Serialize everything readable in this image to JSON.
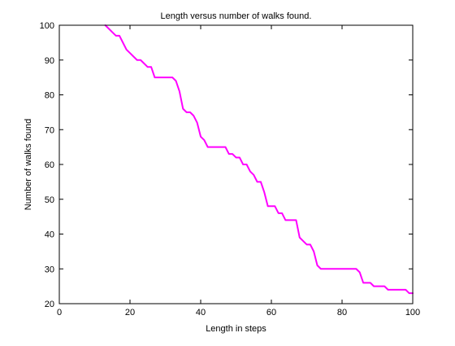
{
  "chart_data": {
    "type": "line",
    "title": "Length versus number of walks found.",
    "xlabel": "Length in steps",
    "ylabel": "Number of walks found",
    "xlim": [
      0,
      100
    ],
    "ylim": [
      20,
      100
    ],
    "xticks": [
      0,
      20,
      40,
      60,
      80,
      100
    ],
    "yticks": [
      20,
      30,
      40,
      50,
      60,
      70,
      80,
      90,
      100
    ],
    "grid": false,
    "legend": "none",
    "series": [
      {
        "color": "#ff00ff",
        "x": [
          13,
          14,
          15,
          16,
          17,
          18,
          19,
          20,
          21,
          22,
          23,
          24,
          25,
          26,
          27,
          28,
          29,
          30,
          31,
          32,
          33,
          34,
          35,
          36,
          37,
          38,
          39,
          40,
          41,
          42,
          43,
          44,
          45,
          46,
          47,
          48,
          49,
          50,
          51,
          52,
          53,
          54,
          55,
          56,
          57,
          58,
          59,
          60,
          61,
          62,
          63,
          64,
          65,
          66,
          67,
          68,
          69,
          70,
          71,
          72,
          73,
          74,
          75,
          76,
          77,
          78,
          79,
          80,
          81,
          82,
          83,
          84,
          85,
          86,
          87,
          88,
          89,
          90,
          91,
          92,
          93,
          94,
          95,
          96,
          97,
          98,
          99,
          100
        ],
        "y": [
          100,
          99,
          98,
          97,
          97,
          95,
          93,
          92,
          91,
          90,
          90,
          89,
          88,
          88,
          85,
          85,
          85,
          85,
          85,
          85,
          84,
          81,
          76,
          75,
          75,
          74,
          72,
          68,
          67,
          65,
          65,
          65,
          65,
          65,
          65,
          63,
          63,
          62,
          62,
          60,
          60,
          58,
          57,
          55,
          55,
          52,
          48,
          48,
          48,
          46,
          46,
          44,
          44,
          44,
          44,
          39,
          38,
          37,
          37,
          35,
          31,
          30,
          30,
          30,
          30,
          30,
          30,
          30,
          30,
          30,
          30,
          30,
          29,
          26,
          26,
          26,
          25,
          25,
          25,
          25,
          24,
          24,
          24,
          24,
          24,
          24,
          23,
          23
        ]
      }
    ]
  }
}
